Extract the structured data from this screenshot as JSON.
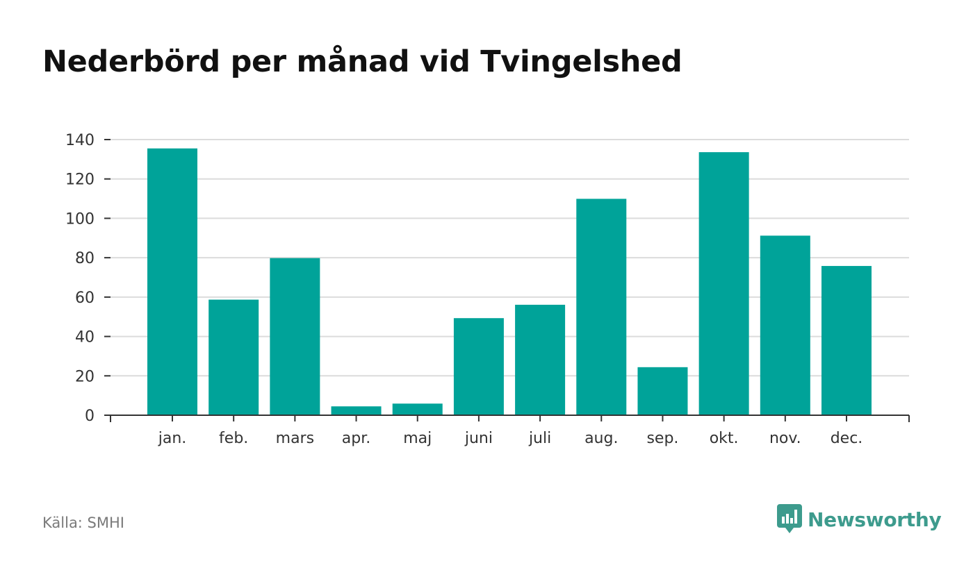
{
  "title": "Nederbörd per månad vid Tvingelshed",
  "source": "Källa: SMHI",
  "brand": "Newsworthy",
  "colors": {
    "bar": "#00a399",
    "brand": "#3d9b8d"
  },
  "chart_data": {
    "type": "bar",
    "title": "Nederbörd per månad vid Tvingelshed",
    "xlabel": "",
    "ylabel": "",
    "categories": [
      "jan.",
      "feb.",
      "mars",
      "apr.",
      "maj",
      "juni",
      "juli",
      "aug.",
      "sep.",
      "okt.",
      "nov.",
      "dec."
    ],
    "values": [
      135.5,
      58.7,
      79.8,
      4.5,
      5.9,
      49.3,
      56.1,
      109.9,
      24.4,
      133.6,
      91.2,
      75.8
    ],
    "ylim": [
      0,
      140
    ],
    "yticks": [
      0,
      20,
      40,
      60,
      80,
      100,
      120,
      140
    ],
    "grid": true,
    "legend": "none"
  }
}
